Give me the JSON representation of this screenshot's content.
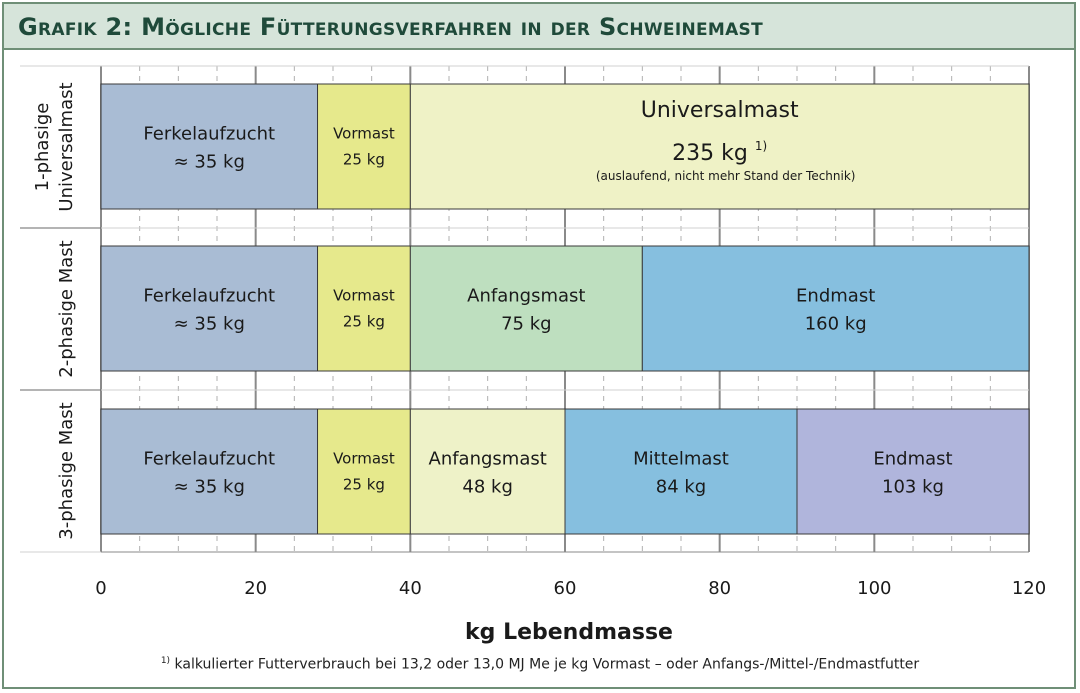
{
  "title": "Grafik 2: Mögliche Fütterungsverfahren in der Schweinemast",
  "footnote": {
    "marker": "1)",
    "text": " kalkulierter Futterverbrauch bei 13,2 oder 13,0 MJ Me je kg Vormast – oder Anfangs-/Mittel-/Endmastfutter"
  },
  "colors": {
    "Ferkelaufzucht": "#a9bcd4",
    "Vormast": "#e6e98c",
    "Universalmast": "#eff2c6",
    "Anfangsmast_2": "#bedfbf",
    "Endmast_2": "#86bfdf",
    "Anfangsmast_3": "#eef2c8",
    "Mittelmast": "#86bfdf",
    "Endmast_3": "#b0b5dc"
  },
  "chart_data": {
    "type": "bar",
    "orientation": "horizontal-stacked",
    "title": "Grafik 2: Mögliche Fütterungsverfahren in der Schweinemast",
    "xlabel": "kg Lebendmasse",
    "xlim": [
      0,
      120
    ],
    "xticks": [
      0,
      20,
      40,
      60,
      80,
      100,
      120
    ],
    "grid": true,
    "rows": [
      {
        "label": [
          "1-phasige",
          "Universalmast"
        ],
        "segments": [
          {
            "name": "Ferkelaufzucht",
            "value_label": "≈ 35 kg",
            "start": 0,
            "end": 28,
            "color_key": "Ferkelaufzucht"
          },
          {
            "name": "Vormast",
            "value_label": "25 kg",
            "start": 28,
            "end": 40,
            "color_key": "Vormast"
          },
          {
            "name": "Universalmast",
            "value_label": "235 kg",
            "value_sup": "1)",
            "note": "(auslaufend, nicht mehr Stand der Technik)",
            "start": 40,
            "end": 120,
            "color_key": "Universalmast"
          }
        ]
      },
      {
        "label": [
          "2-phasige Mast"
        ],
        "segments": [
          {
            "name": "Ferkelaufzucht",
            "value_label": "≈ 35 kg",
            "start": 0,
            "end": 28,
            "color_key": "Ferkelaufzucht"
          },
          {
            "name": "Vormast",
            "value_label": "25 kg",
            "start": 28,
            "end": 40,
            "color_key": "Vormast"
          },
          {
            "name": "Anfangsmast",
            "value_label": "75 kg",
            "start": 40,
            "end": 70,
            "color_key": "Anfangsmast_2"
          },
          {
            "name": "Endmast",
            "value_label": "160 kg",
            "start": 70,
            "end": 120,
            "color_key": "Endmast_2"
          }
        ]
      },
      {
        "label": [
          "3-phasige Mast"
        ],
        "segments": [
          {
            "name": "Ferkelaufzucht",
            "value_label": "≈ 35 kg",
            "start": 0,
            "end": 28,
            "color_key": "Ferkelaufzucht"
          },
          {
            "name": "Vormast",
            "value_label": "25 kg",
            "start": 28,
            "end": 40,
            "color_key": "Vormast"
          },
          {
            "name": "Anfangsmast",
            "value_label": "48 kg",
            "start": 40,
            "end": 60,
            "color_key": "Anfangsmast_3"
          },
          {
            "name": "Mittelmast",
            "value_label": "84 kg",
            "start": 60,
            "end": 90,
            "color_key": "Mittelmast"
          },
          {
            "name": "Endmast",
            "value_label": "103 kg",
            "start": 90,
            "end": 120,
            "color_key": "Endmast_3"
          }
        ]
      }
    ]
  }
}
